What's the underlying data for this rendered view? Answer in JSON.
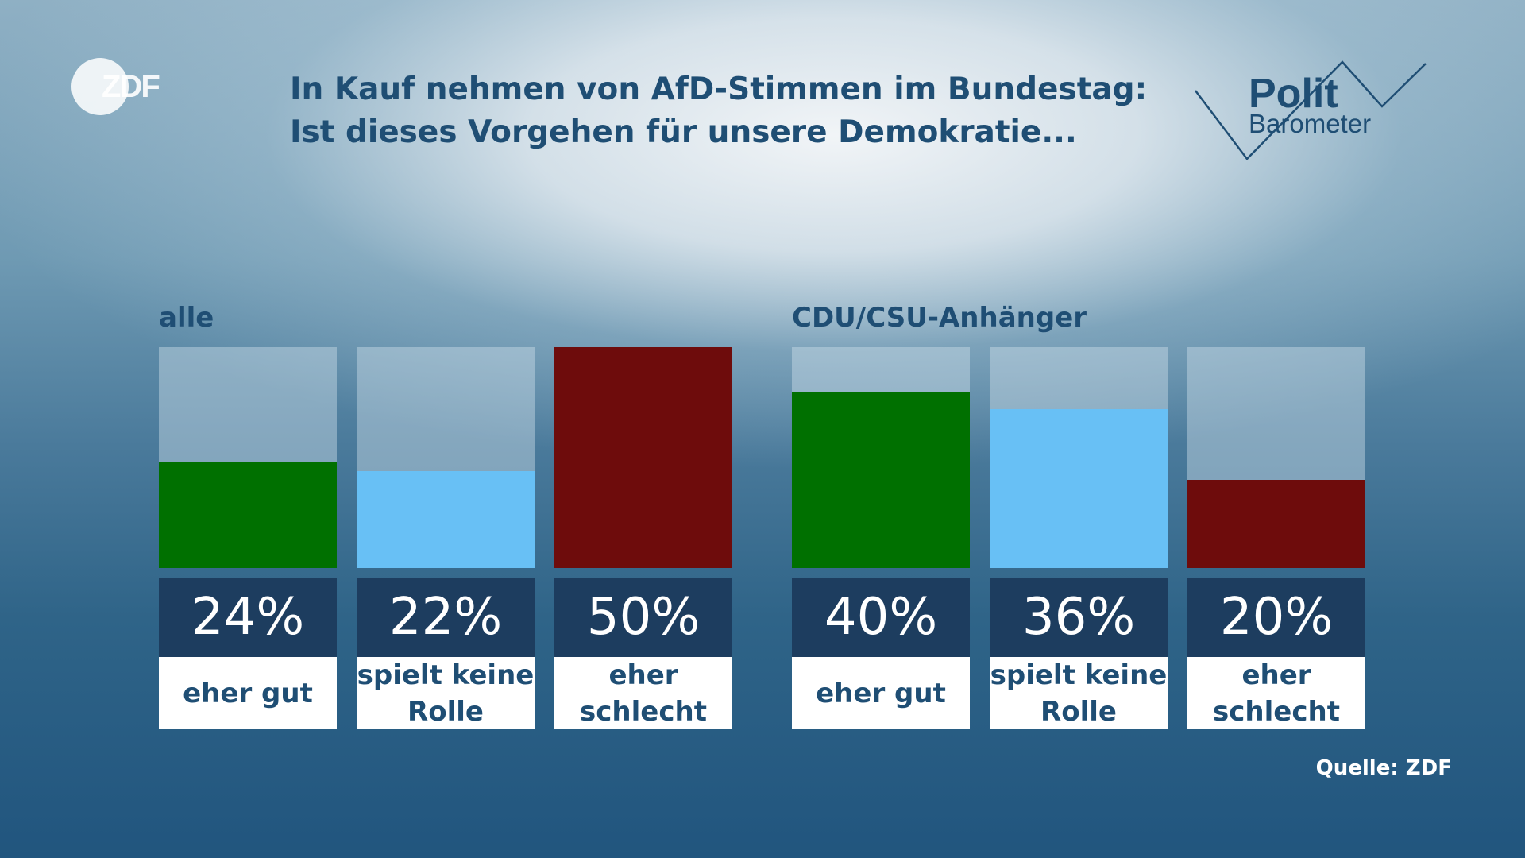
{
  "brand": {
    "logo_text": "ZDF",
    "series_title": "Polit",
    "series_subtitle": "Barometer"
  },
  "colors": {
    "eher_gut": "#007000",
    "spielt_keine_rolle": "#68c0f5",
    "eher_schlecht": "#6e0c0c",
    "value_box": "#1d3d5f"
  },
  "source": "Quelle: ZDF",
  "chart_data": {
    "type": "bar",
    "title": "In Kauf nehmen von AfD-Stimmen im Bundestag:",
    "subtitle": "Ist dieses Vorgehen für unsere Demokratie...",
    "ylim": [
      0,
      50
    ],
    "grid": false,
    "groups": [
      {
        "label": "alle",
        "bars": [
          {
            "category": "eher gut",
            "value": 24,
            "value_label": "24%",
            "color": "#007000"
          },
          {
            "category": "spielt keine\nRolle",
            "value": 22,
            "value_label": "22%",
            "color": "#68c0f5"
          },
          {
            "category": "eher\nschlecht",
            "value": 50,
            "value_label": "50%",
            "color": "#6e0c0c"
          }
        ]
      },
      {
        "label": "CDU/CSU-Anhänger",
        "bars": [
          {
            "category": "eher gut",
            "value": 40,
            "value_label": "40%",
            "color": "#007000"
          },
          {
            "category": "spielt keine\nRolle",
            "value": 36,
            "value_label": "36%",
            "color": "#68c0f5"
          },
          {
            "category": "eher\nschlecht",
            "value": 20,
            "value_label": "20%",
            "color": "#6e0c0c"
          }
        ]
      }
    ]
  }
}
